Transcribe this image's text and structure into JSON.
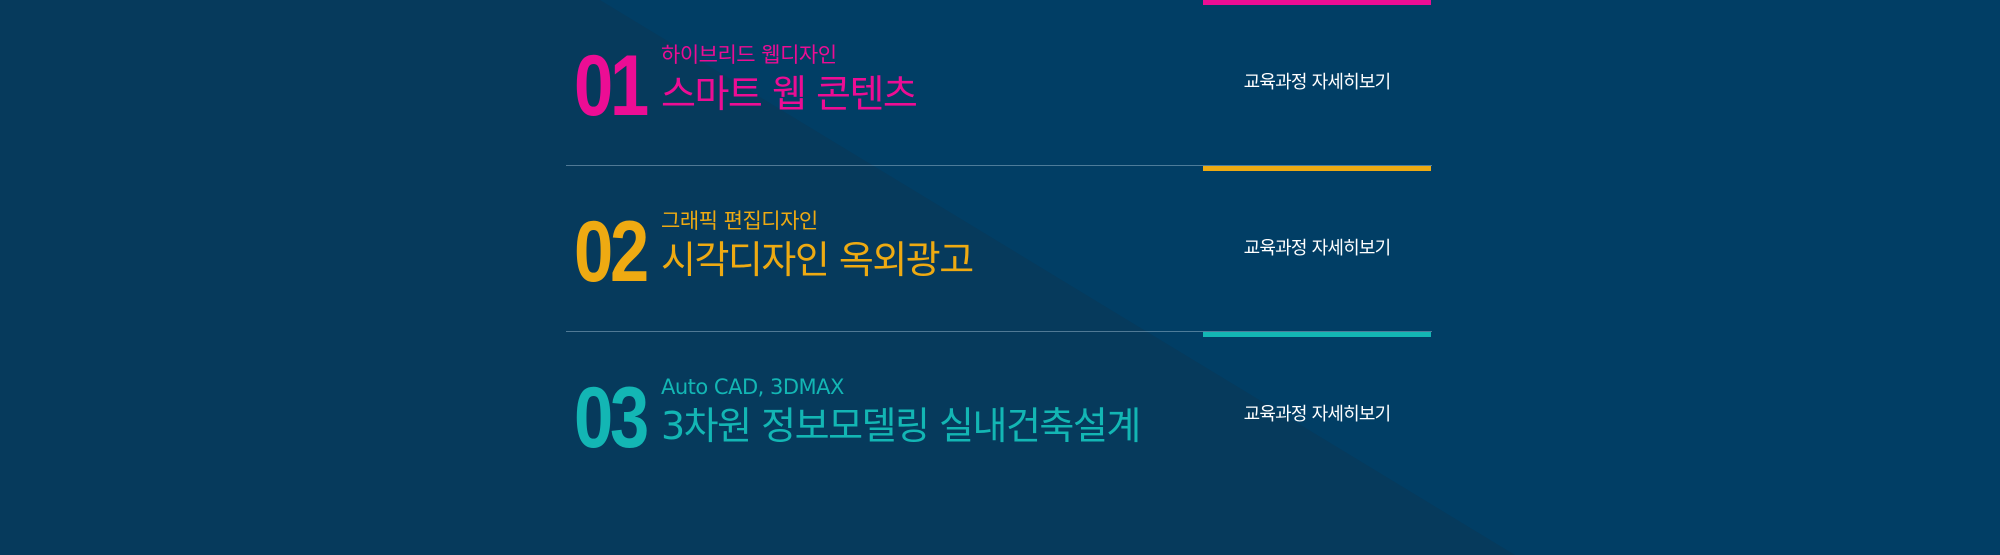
{
  "colors": {
    "background": "#063a5c",
    "diagonal_shade": "#013e65",
    "pink": "#ec0d94",
    "gold": "#eeaa12",
    "teal": "#13b6b4",
    "link_text": "#ffffff"
  },
  "courses": [
    {
      "number": "01",
      "subtitle": "하이브리드 웹디자인",
      "title": "스마트 웹 콘텐츠",
      "link_label": "교육과정 자세히보기",
      "color": "#ec0d94"
    },
    {
      "number": "02",
      "subtitle": "그래픽 편집디자인",
      "title": "시각디자인 옥외광고",
      "link_label": "교육과정 자세히보기",
      "color": "#eeaa12"
    },
    {
      "number": "03",
      "subtitle": "Auto CAD, 3DMAX",
      "title": "3차원 정보모델링 실내건축설계",
      "link_label": "교육과정 자세히보기",
      "color": "#13b6b4"
    }
  ]
}
